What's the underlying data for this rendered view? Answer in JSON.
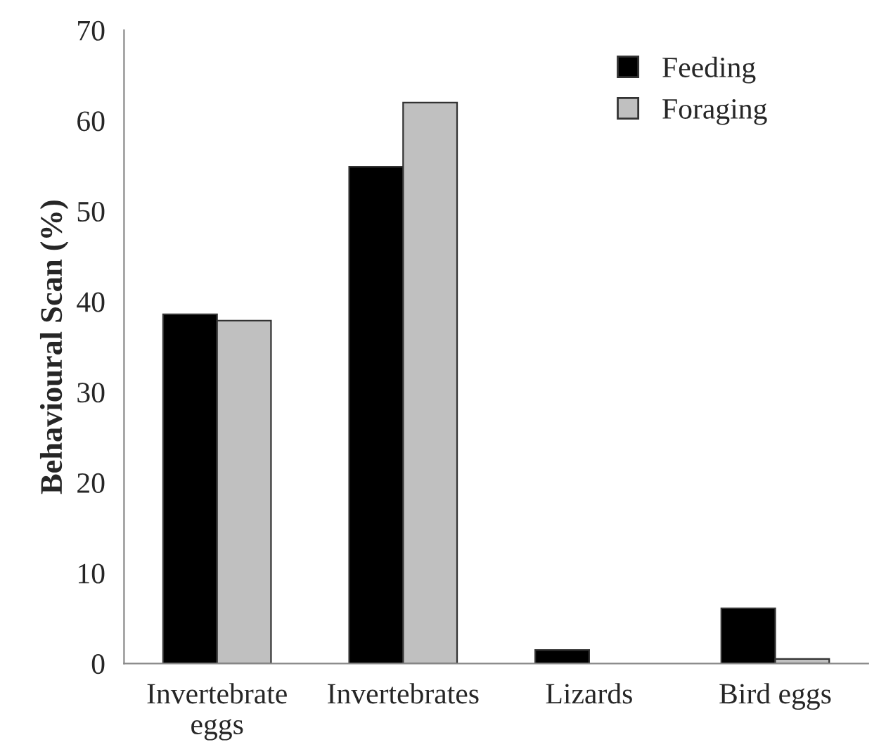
{
  "chart_data": {
    "type": "bar",
    "ylabel": "Behavioural Scan (%)",
    "categories": [
      "Invertebrate\neggs",
      "Invertebrates",
      "Lizards",
      "Bird eggs"
    ],
    "series": [
      {
        "name": "Feeding",
        "color": "#000000",
        "values": [
          38.6,
          54.9,
          1.5,
          6.1
        ]
      },
      {
        "name": "Foraging",
        "color": "#c0c0c0",
        "values": [
          37.9,
          62.0,
          null,
          0.5
        ]
      }
    ],
    "ylim": [
      0,
      70
    ],
    "yticks": [
      0,
      10,
      20,
      30,
      40,
      50,
      60,
      70
    ],
    "grid": false,
    "legend": "top right"
  }
}
